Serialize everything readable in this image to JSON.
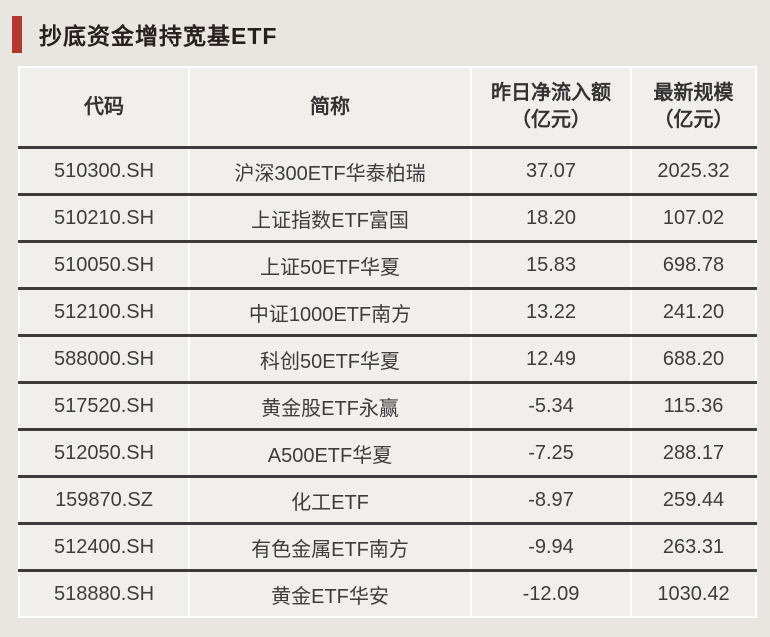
{
  "title": {
    "text": "抄底资金增持宽基ETF"
  },
  "colors": {
    "accent_red": "#B5382F",
    "page_bg": "#E9E5E1",
    "cell_bg": "#F1EFEB",
    "rule_dark": "#3C3C3C",
    "divider_white": "#FFFFFF",
    "text": "#3D3D3D"
  },
  "table": {
    "headers": [
      {
        "line1": "代码",
        "line2": ""
      },
      {
        "line1": "简称",
        "line2": ""
      },
      {
        "line1": "昨日净流入额",
        "line2": "（亿元）"
      },
      {
        "line1": "最新规模",
        "line2": "（亿元）"
      }
    ],
    "rows": [
      [
        "510300.SH",
        "沪深300ETF华泰柏瑞",
        "37.07",
        "2025.32"
      ],
      [
        "510210.SH",
        "上证指数ETF富国",
        "18.20",
        "107.02"
      ],
      [
        "510050.SH",
        "上证50ETF华夏",
        "15.83",
        "698.78"
      ],
      [
        "512100.SH",
        "中证1000ETF南方",
        "13.22",
        "241.20"
      ],
      [
        "588000.SH",
        "科创50ETF华夏",
        "12.49",
        "688.20"
      ],
      [
        "517520.SH",
        "黄金股ETF永赢",
        "-5.34",
        "115.36"
      ],
      [
        "512050.SH",
        "A500ETF华夏",
        "-7.25",
        "288.17"
      ],
      [
        "159870.SZ",
        "化工ETF",
        "-8.97",
        "259.44"
      ],
      [
        "512400.SH",
        "有色金属ETF南方",
        "-9.94",
        "263.31"
      ],
      [
        "518880.SH",
        "黄金ETF华安",
        "-12.09",
        "1030.42"
      ]
    ]
  },
  "chart_data": {
    "type": "table",
    "title": "抄底资金增持宽基ETF",
    "columns": [
      "代码",
      "简称",
      "昨日净流入额（亿元）",
      "最新规模（亿元）"
    ],
    "rows": [
      [
        "510300.SH",
        "沪深300ETF华泰柏瑞",
        37.07,
        2025.32
      ],
      [
        "510210.SH",
        "上证指数ETF富国",
        18.2,
        107.02
      ],
      [
        "510050.SH",
        "上证50ETF华夏",
        15.83,
        698.78
      ],
      [
        "512100.SH",
        "中证1000ETF南方",
        13.22,
        241.2
      ],
      [
        "588000.SH",
        "科创50ETF华夏",
        12.49,
        688.2
      ],
      [
        "517520.SH",
        "黄金股ETF永赢",
        -5.34,
        115.36
      ],
      [
        "512050.SH",
        "A500ETF华夏",
        -7.25,
        288.17
      ],
      [
        "159870.SZ",
        "化工ETF",
        -8.97,
        259.44
      ],
      [
        "512400.SH",
        "有色金属ETF南方",
        -9.94,
        263.31
      ],
      [
        "518880.SH",
        "黄金ETF华安",
        -12.09,
        1030.42
      ]
    ]
  }
}
